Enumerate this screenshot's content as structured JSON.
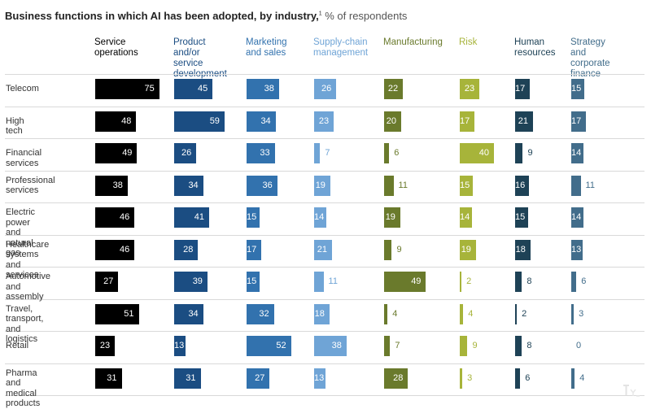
{
  "chart_data": {
    "type": "table",
    "title": "Business functions in which AI has been adopted, by industry,",
    "title_footnote": "1",
    "subtitle": "% of respondents",
    "columns": [
      {
        "name": "Service operations",
        "lines": [
          "Service",
          "operations"
        ],
        "color": "#000000"
      },
      {
        "name": "Product and/or service development",
        "lines": [
          "Product",
          "and/or service",
          "development"
        ],
        "color": "#1b4d82"
      },
      {
        "name": "Marketing and sales",
        "lines": [
          "Marketing",
          "and sales"
        ],
        "color": "#3272ae"
      },
      {
        "name": "Supply-chain management",
        "lines": [
          "Supply-chain",
          "management"
        ],
        "color": "#6fa4d6"
      },
      {
        "name": "Manufacturing",
        "lines": [
          "Manufacturing"
        ],
        "color": "#6a7a2c"
      },
      {
        "name": "Risk",
        "lines": [
          "Risk"
        ],
        "color": "#a7b43a"
      },
      {
        "name": "Human resources",
        "lines": [
          "Human",
          "resources"
        ],
        "color": "#1e4256"
      },
      {
        "name": "Strategy and corporate finance",
        "lines": [
          "Strategy",
          "and corporate",
          "finance"
        ],
        "color": "#426d8b"
      }
    ],
    "rows": [
      {
        "name": "Telecom",
        "lines": [
          "Telecom"
        ],
        "values": [
          75,
          45,
          38,
          26,
          22,
          23,
          17,
          15
        ]
      },
      {
        "name": "High tech",
        "lines": [
          "High tech"
        ],
        "values": [
          48,
          59,
          34,
          23,
          20,
          17,
          21,
          17
        ]
      },
      {
        "name": "Financial services",
        "lines": [
          "Financial services"
        ],
        "values": [
          49,
          26,
          33,
          7,
          6,
          40,
          9,
          14
        ]
      },
      {
        "name": "Professional services",
        "lines": [
          "Professional",
          "services"
        ],
        "values": [
          38,
          34,
          36,
          19,
          11,
          15,
          16,
          11
        ]
      },
      {
        "name": "Electric power and natural gas",
        "lines": [
          "Electric power",
          "and natural gas"
        ],
        "values": [
          46,
          41,
          15,
          14,
          19,
          14,
          15,
          14
        ]
      },
      {
        "name": "Healthcare systems and services",
        "lines": [
          "Healthcare systems",
          "and services"
        ],
        "values": [
          46,
          28,
          17,
          21,
          9,
          19,
          18,
          13
        ]
      },
      {
        "name": "Automotive and assembly",
        "lines": [
          "Automotive",
          "and assembly"
        ],
        "values": [
          27,
          39,
          15,
          11,
          49,
          2,
          8,
          6
        ]
      },
      {
        "name": "Travel, transport, and logistics",
        "lines": [
          "Travel, transport,",
          "and logistics"
        ],
        "values": [
          51,
          34,
          32,
          18,
          4,
          4,
          2,
          3
        ]
      },
      {
        "name": "Retail",
        "lines": [
          "Retail"
        ],
        "values": [
          23,
          13,
          52,
          38,
          7,
          9,
          8,
          0
        ]
      },
      {
        "name": "Pharma and medical products",
        "lines": [
          "Pharma and",
          "medical products"
        ],
        "values": [
          31,
          31,
          27,
          13,
          28,
          3,
          6,
          4
        ]
      }
    ],
    "value_unit": "% of respondents",
    "grid": "horizontal row separators"
  }
}
